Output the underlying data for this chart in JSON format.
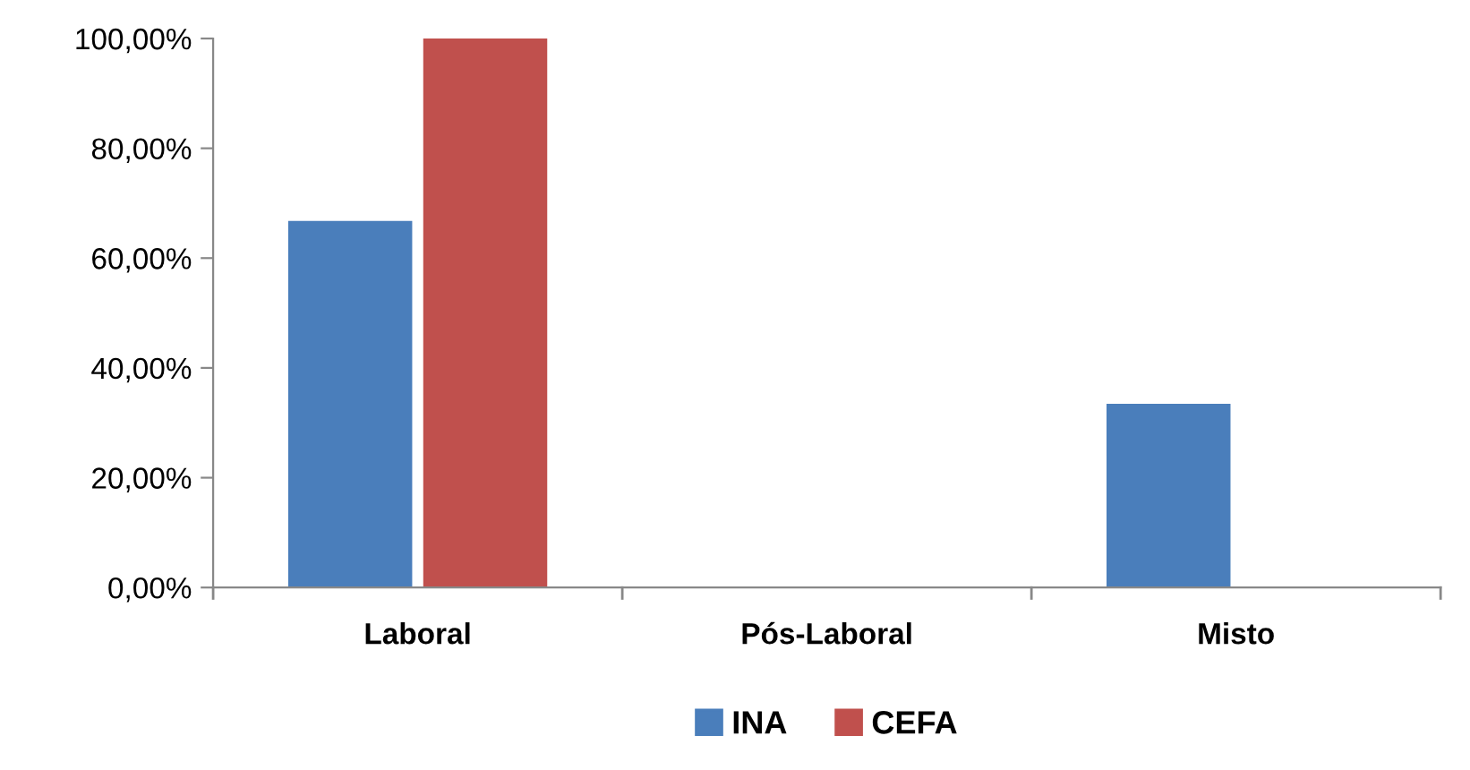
{
  "chart_data": {
    "type": "bar",
    "categories": [
      "Laboral",
      "Pós-Laboral",
      "Misto"
    ],
    "series": [
      {
        "name": "INA",
        "color": "#4a7ebb",
        "values": [
          66.67,
          0,
          33.33
        ]
      },
      {
        "name": "CEFA",
        "color": "#c0504d",
        "values": [
          100,
          0,
          0
        ]
      }
    ],
    "ylim": [
      0,
      100
    ],
    "yticks": [
      {
        "value": 0,
        "label": "0,00%"
      },
      {
        "value": 20,
        "label": "20,00%"
      },
      {
        "value": 40,
        "label": "40,00%"
      },
      {
        "value": 60,
        "label": "60,00%"
      },
      {
        "value": 80,
        "label": "80,00%"
      },
      {
        "value": 100,
        "label": "100,00%"
      }
    ],
    "grid": false,
    "legend": "bottom"
  }
}
